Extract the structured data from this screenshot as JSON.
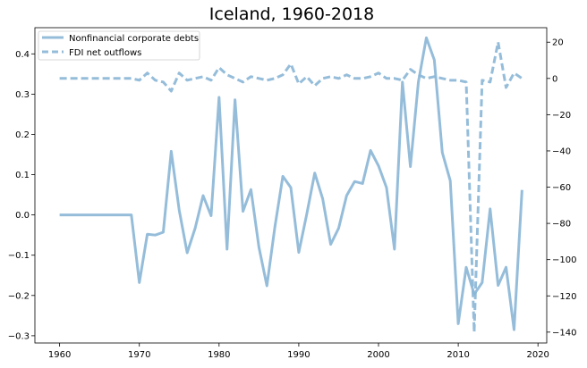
{
  "chart_data": {
    "type": "line",
    "title": "Iceland, 1960-2018",
    "xlabel": "",
    "ylabel": "",
    "y2label": "",
    "xlim": [
      1956.9,
      2021.1
    ],
    "ylim": [
      -0.318,
      0.465
    ],
    "y2lim": [
      -146,
      28
    ],
    "x_ticks": [
      1960,
      1970,
      1980,
      1990,
      2000,
      2010,
      2020
    ],
    "y_ticks": [
      -0.3,
      -0.2,
      -0.1,
      0.0,
      0.1,
      0.2,
      0.3,
      0.4
    ],
    "y_tick_labels": [
      "−0.3",
      "−0.2",
      "−0.1",
      "0.0",
      "0.1",
      "0.2",
      "0.3",
      "0.4"
    ],
    "y2_ticks": [
      -140,
      -120,
      -100,
      -80,
      -60,
      -40,
      -20,
      0,
      20
    ],
    "y2_tick_labels": [
      "−140",
      "−120",
      "−100",
      "−80",
      "−60",
      "−40",
      "−20",
      "0",
      "20"
    ],
    "grid": false,
    "legend_position": "upper-left",
    "color": "#8ab6d6",
    "series": [
      {
        "name": "Nonfinancial corporate debts",
        "axis": "left",
        "style": "solid",
        "x": [
          1960,
          1961,
          1962,
          1963,
          1964,
          1965,
          1966,
          1967,
          1968,
          1969,
          1970,
          1971,
          1972,
          1973,
          1974,
          1975,
          1976,
          1977,
          1978,
          1979,
          1980,
          1981,
          1982,
          1983,
          1984,
          1985,
          1986,
          1987,
          1988,
          1989,
          1990,
          1991,
          1992,
          1993,
          1994,
          1995,
          1996,
          1997,
          1998,
          1999,
          2000,
          2001,
          2002,
          2003,
          2004,
          2005,
          2006,
          2007,
          2008,
          2009,
          2010,
          2011,
          2012,
          2013,
          2014,
          2015,
          2016,
          2017,
          2018
        ],
        "values": [
          0,
          0,
          0,
          0,
          0,
          0,
          0,
          0,
          0,
          0,
          -0.168,
          -0.048,
          -0.05,
          -0.043,
          0.158,
          0.012,
          -0.094,
          -0.033,
          0.048,
          -0.002,
          0.292,
          -0.085,
          0.286,
          0.009,
          0.063,
          -0.08,
          -0.176,
          -0.03,
          0.096,
          0.068,
          -0.093,
          0.002,
          0.104,
          0.04,
          -0.073,
          -0.033,
          0.048,
          0.083,
          0.078,
          0.16,
          0.122,
          0.068,
          -0.085,
          0.33,
          0.12,
          0.33,
          0.44,
          0.385,
          0.155,
          0.085,
          -0.27,
          -0.13,
          -0.197,
          -0.168,
          0.015,
          -0.175,
          -0.13,
          -0.285,
          0.062
        ]
      },
      {
        "name": "FDI net outflows",
        "axis": "right",
        "style": "dashed",
        "x": [
          1960,
          1961,
          1962,
          1963,
          1964,
          1965,
          1966,
          1967,
          1968,
          1969,
          1970,
          1971,
          1972,
          1973,
          1974,
          1975,
          1976,
          1977,
          1978,
          1979,
          1980,
          1981,
          1982,
          1983,
          1984,
          1985,
          1986,
          1987,
          1988,
          1989,
          1990,
          1991,
          1992,
          1993,
          1994,
          1995,
          1996,
          1997,
          1998,
          1999,
          2000,
          2001,
          2002,
          2003,
          2004,
          2005,
          2006,
          2007,
          2008,
          2009,
          2010,
          2011,
          2012,
          2013,
          2014,
          2015,
          2016,
          2017,
          2018
        ],
        "values": [
          0,
          0,
          0,
          0,
          0,
          0,
          0,
          0,
          0,
          0,
          -1,
          3,
          -1,
          -2,
          -7,
          3,
          -1,
          0,
          1,
          -1,
          6,
          2,
          0,
          -2,
          1,
          0,
          -1,
          0,
          2,
          8,
          -3,
          1,
          -4,
          0,
          1,
          0,
          2,
          0,
          0,
          1,
          3,
          0,
          0,
          -1,
          5,
          2,
          0,
          1,
          0,
          -1,
          -1,
          -2,
          -140,
          -1,
          -2,
          20,
          -5,
          3,
          0
        ]
      }
    ]
  }
}
